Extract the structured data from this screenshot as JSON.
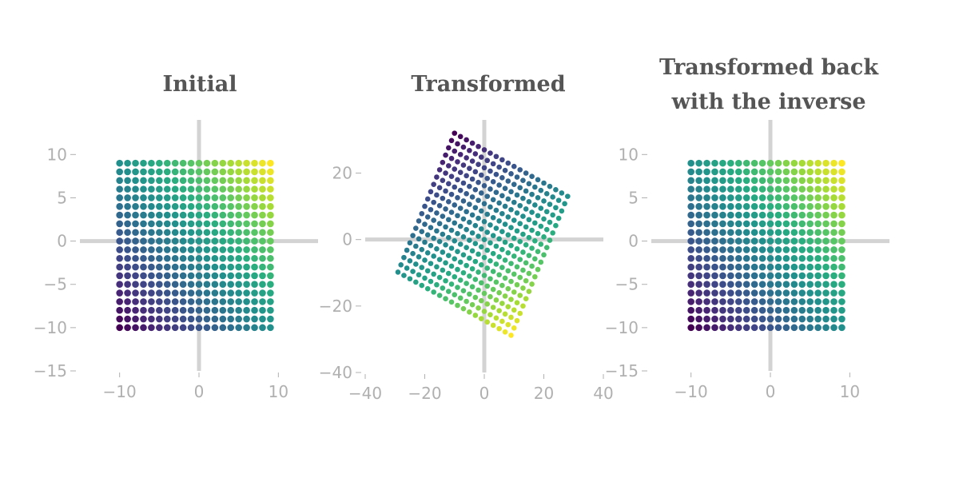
{
  "chart_data": [
    {
      "type": "scatter",
      "title_lines": [
        "Initial"
      ],
      "xlabel": "",
      "ylabel": "",
      "xlim": [
        -15,
        15
      ],
      "ylim": [
        -15,
        14
      ],
      "xticks": [
        -10,
        0,
        10
      ],
      "xtick_labels": [
        "−10",
        "0",
        "10"
      ],
      "yticks": [
        -15,
        -10,
        -5,
        0,
        5,
        10
      ],
      "ytick_labels": [
        "−15",
        "−10",
        "−5",
        "0",
        "5",
        "10"
      ],
      "grid": false,
      "colormap": "viridis",
      "points": {
        "x_range": [
          -10,
          9
        ],
        "y_range": [
          -10,
          9
        ],
        "step": 1,
        "matrix": [
          [
            1,
            0
          ],
          [
            0,
            1
          ]
        ]
      }
    },
    {
      "type": "scatter",
      "title_lines": [
        "Transformed"
      ],
      "xlabel": "",
      "ylabel": "",
      "xlim": [
        -40,
        40
      ],
      "ylim": [
        -40,
        36
      ],
      "xticks": [
        -40,
        -20,
        0,
        20,
        40
      ],
      "xtick_labels": [
        "−40",
        "−20",
        "0",
        "20",
        "40"
      ],
      "yticks": [
        -40,
        -20,
        0,
        20
      ],
      "ytick_labels": [
        "−40",
        "−20",
        "0",
        "20"
      ],
      "grid": false,
      "colormap": "viridis",
      "points": {
        "x_range": [
          -10,
          9
        ],
        "y_range": [
          -10,
          9
        ],
        "step": 1,
        "matrix": [
          [
            2,
            -1
          ],
          [
            -1,
            -2.2
          ]
        ]
      }
    },
    {
      "type": "scatter",
      "title_lines": [
        "Transformed back",
        "with the inverse"
      ],
      "xlabel": "",
      "ylabel": "",
      "xlim": [
        -15,
        15
      ],
      "ylim": [
        -15,
        14
      ],
      "xticks": [
        -10,
        0,
        10
      ],
      "xtick_labels": [
        "−10",
        "0",
        "10"
      ],
      "yticks": [
        -15,
        -10,
        -5,
        0,
        5,
        10
      ],
      "ytick_labels": [
        "−15",
        "−10",
        "−5",
        "0",
        "5",
        "10"
      ],
      "grid": false,
      "colormap": "viridis",
      "points": {
        "x_range": [
          -10,
          9
        ],
        "y_range": [
          -10,
          9
        ],
        "step": 1,
        "matrix": [
          [
            1,
            0
          ],
          [
            0,
            1
          ]
        ]
      }
    }
  ],
  "colors": {
    "axis_line": "#d3d3d3",
    "tick_text": "#b0b0b0",
    "title_text": "#555555"
  }
}
